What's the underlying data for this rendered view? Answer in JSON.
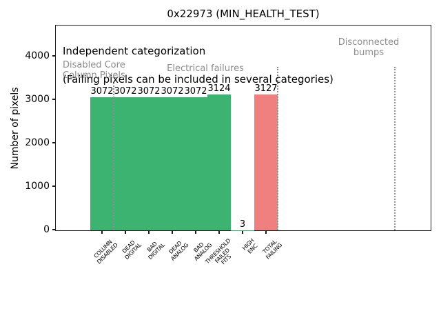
{
  "chart_data": {
    "type": "bar",
    "title": "0x22973 (MIN_HEALTH_TEST)",
    "ylabel": "Number of pixels",
    "xlabel": "",
    "categories": [
      "COLUMN\nDISABLED",
      "DEAD\nDIGITAL",
      "BAD\nDIGITAL",
      "DEAD\nANALOG",
      "BAD\nANALOG",
      "THRESHOLD\nFAILED\nFITS",
      "HIGH\nENC",
      "TOTAL\nFAILING"
    ],
    "values": [
      3072,
      3072,
      3072,
      3072,
      3072,
      3124,
      3,
      3127
    ],
    "value_labels": [
      "3072",
      "3072",
      "3072",
      "3072",
      "3072",
      "3124",
      "3",
      "3127"
    ],
    "bar_color_names": [
      "green",
      "green",
      "green",
      "green",
      "green",
      "green",
      "green",
      "red"
    ],
    "bar_width": 1.0,
    "yticks": [
      0,
      1000,
      2000,
      3000,
      4000
    ],
    "ylim": [
      0,
      4700
    ],
    "xlim": [
      -2,
      14
    ],
    "grid": false,
    "legend": "none",
    "separators": {
      "x_positions": [
        0.5,
        7.5,
        12.5
      ],
      "style": "dotted",
      "color": "#8f8f8f"
    },
    "annotations": {
      "independent_line1": "Independent categorization",
      "independent_line2": "(Failing pixels can be included in several categories)",
      "region_labels": {
        "disabled_core": "Disabled Core\nColumn Pixels",
        "electrical": "Electrical failures",
        "disconnected": "Disconnected\nbumps"
      }
    },
    "colors": {
      "pass_green": "#3cb371",
      "fail_red": "#f08080",
      "annotation_gray": "#8c8c8c",
      "axis_black": "#1a1a1a"
    }
  }
}
